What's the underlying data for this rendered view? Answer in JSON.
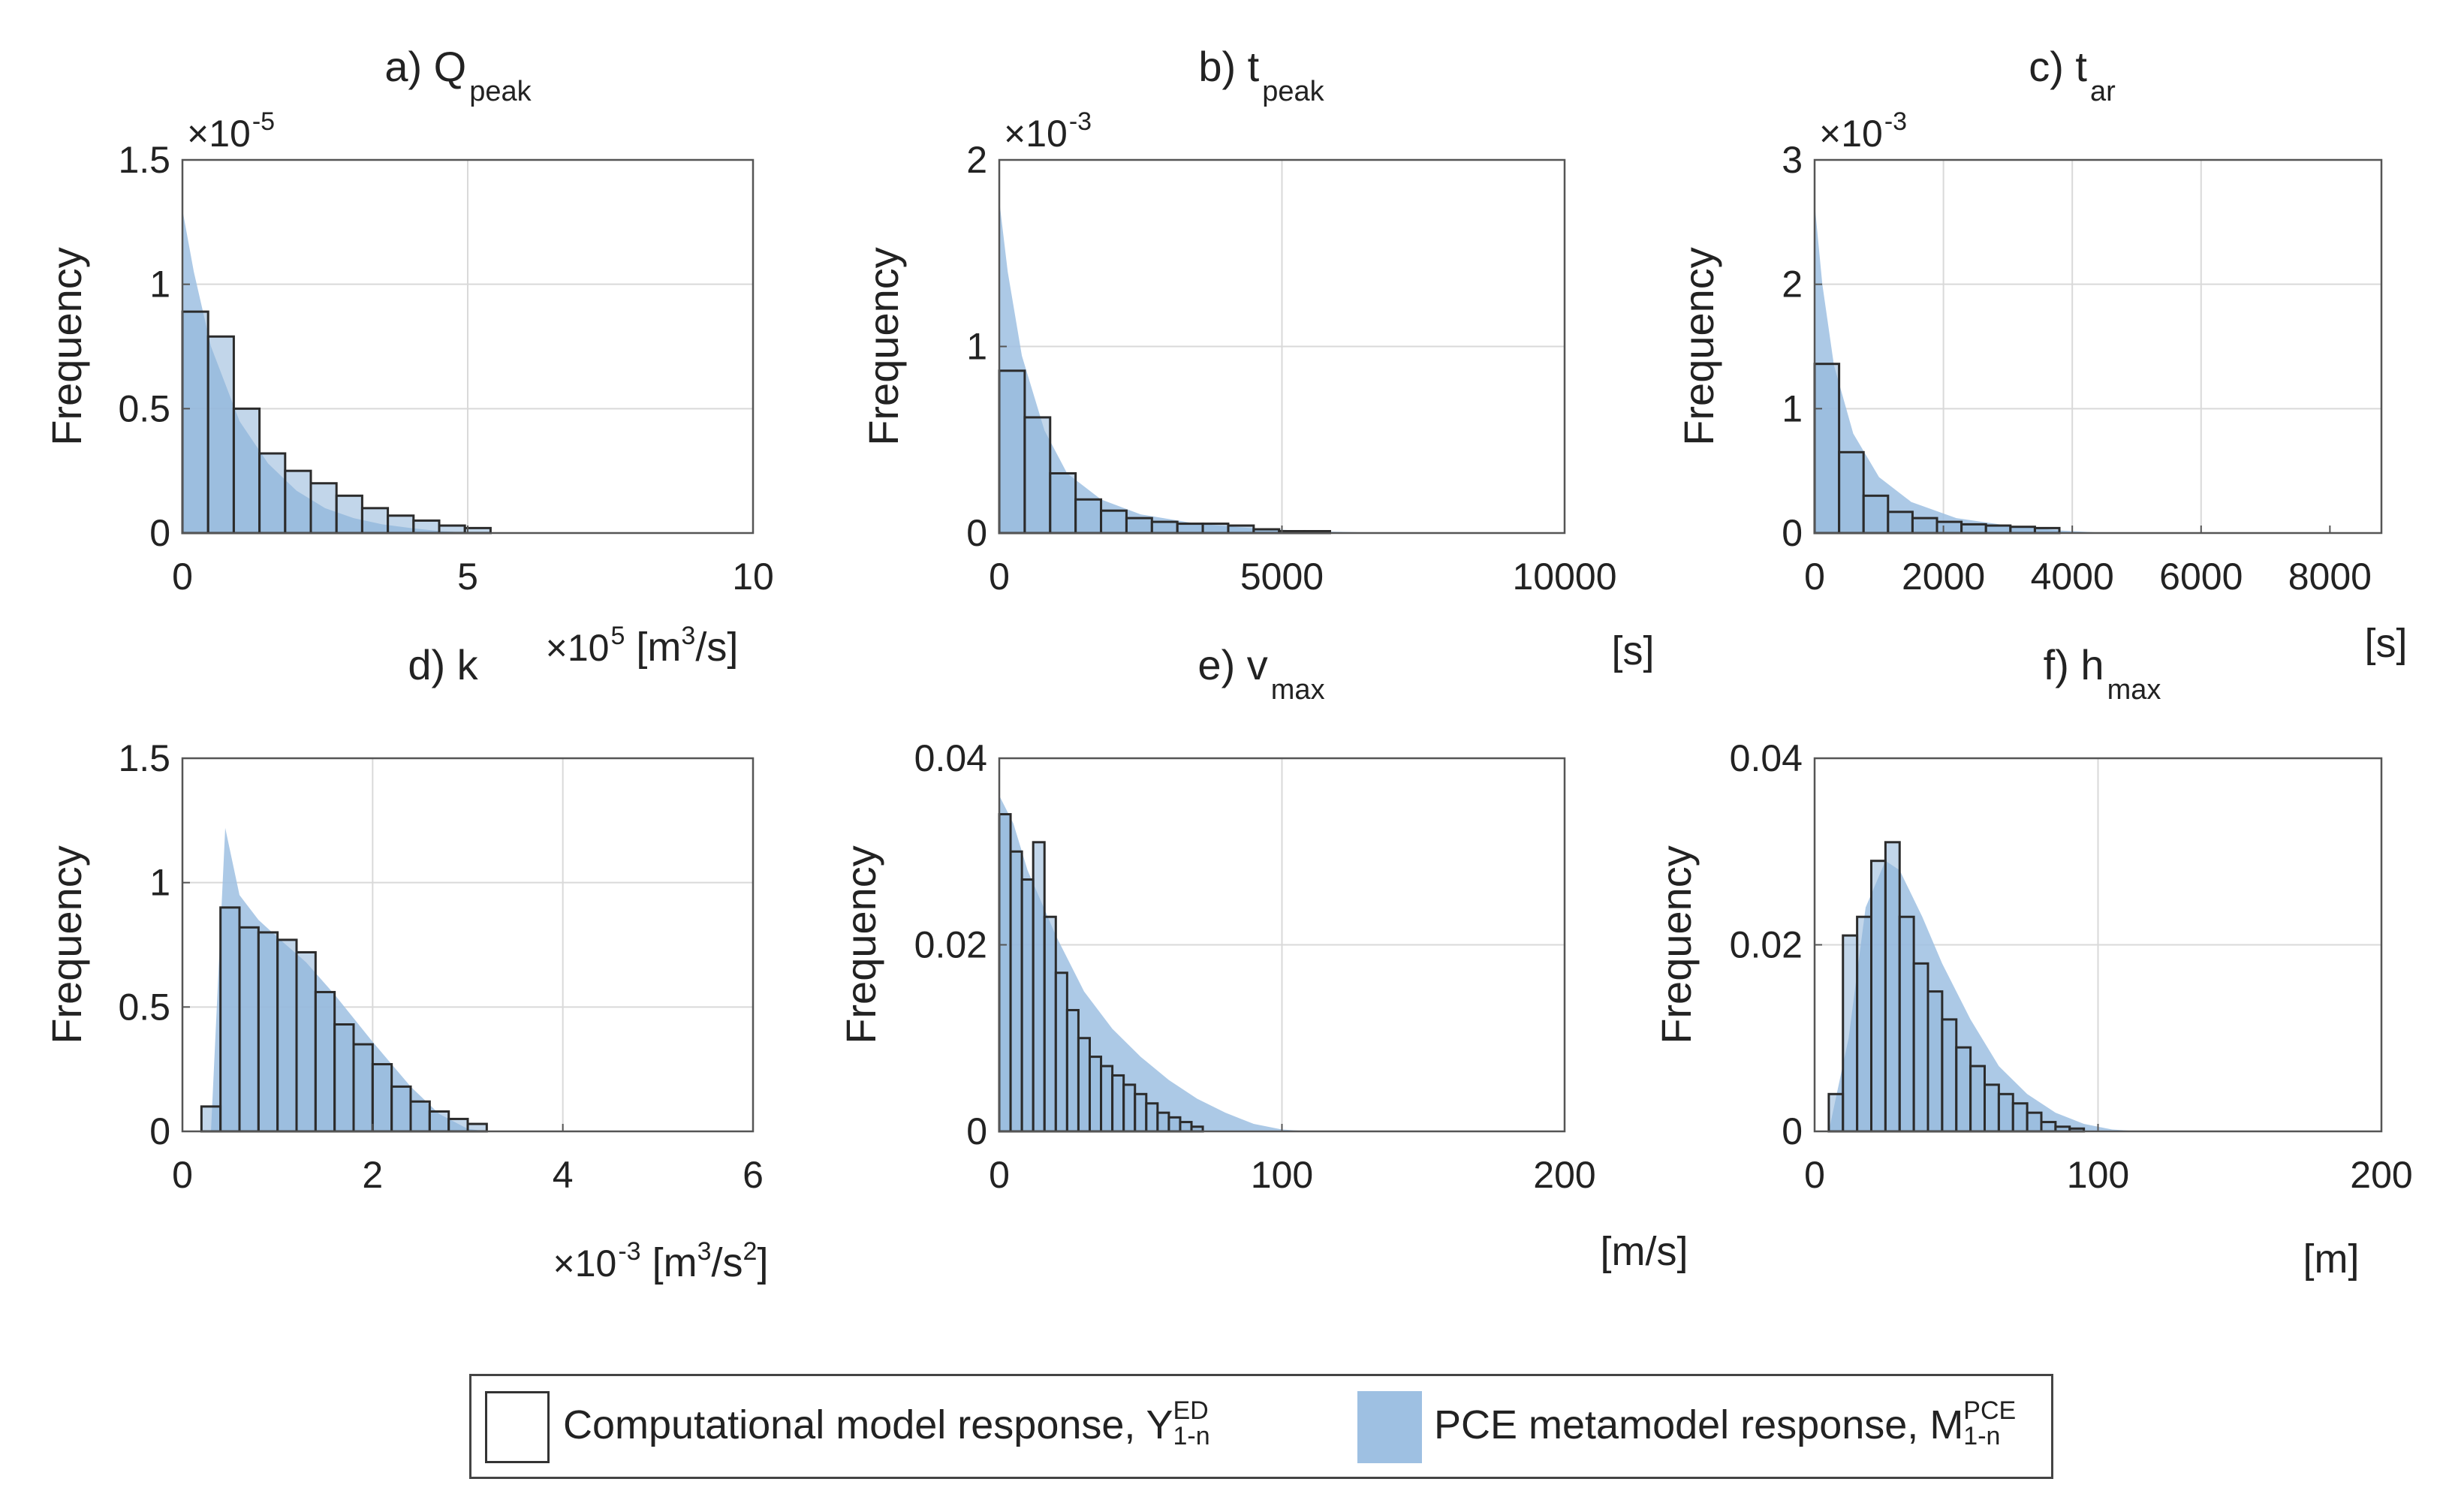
{
  "chart_data": [
    {
      "type": "bar",
      "title_prefix": "a) ",
      "title_main": "Q",
      "title_sub": "peak",
      "ylabel": "Frequency",
      "y_multiplier": "×10",
      "y_multiplier_exp": "-5",
      "x_multiplier": "×10",
      "x_multiplier_exp": "5",
      "unit_pre": "[m",
      "unit_exp": "3",
      "unit_post": "/s]",
      "xlim": [
        0,
        10
      ],
      "ylim": [
        0,
        1.5
      ],
      "xticks": [
        0,
        5,
        10
      ],
      "xtick_labels": [
        "0",
        "5",
        "10"
      ],
      "yticks": [
        0,
        0.5,
        1,
        1.5
      ],
      "ytick_labels": [
        "0",
        "0.5",
        "1",
        "1.5"
      ],
      "bin_width": 0.45,
      "computational_model": [
        0.89,
        0.79,
        0.5,
        0.32,
        0.25,
        0.2,
        0.15,
        0.1,
        0.07,
        0.05,
        0.03,
        0.02
      ],
      "pce_metamodel": [
        [
          0,
          1.3
        ],
        [
          0.2,
          1.05
        ],
        [
          0.5,
          0.75
        ],
        [
          1.0,
          0.45
        ],
        [
          1.5,
          0.28
        ],
        [
          2.0,
          0.17
        ],
        [
          2.5,
          0.1
        ],
        [
          3.0,
          0.06
        ],
        [
          3.5,
          0.035
        ],
        [
          4.0,
          0.02
        ],
        [
          4.5,
          0.008
        ],
        [
          5.0,
          0.002
        ],
        [
          6.0,
          0
        ]
      ]
    },
    {
      "type": "bar",
      "title_prefix": "b) ",
      "title_main": "t",
      "title_sub": "peak",
      "ylabel": "Frequency",
      "y_multiplier": "×10",
      "y_multiplier_exp": "-3",
      "unit_text": "[s]",
      "xlim": [
        0,
        10000
      ],
      "ylim": [
        0,
        2
      ],
      "xticks": [
        0,
        5000,
        10000
      ],
      "xtick_labels": [
        "0",
        "5000",
        "10000"
      ],
      "yticks": [
        0,
        1,
        2
      ],
      "ytick_labels": [
        "0",
        "1",
        "2"
      ],
      "bin_width": 450,
      "computational_model": [
        0.87,
        0.62,
        0.32,
        0.18,
        0.12,
        0.08,
        0.06,
        0.05,
        0.05,
        0.04,
        0.02,
        0.01,
        0.01
      ],
      "pce_metamodel": [
        [
          0,
          1.78
        ],
        [
          150,
          1.4
        ],
        [
          400,
          0.95
        ],
        [
          800,
          0.55
        ],
        [
          1200,
          0.32
        ],
        [
          1800,
          0.18
        ],
        [
          2500,
          0.1
        ],
        [
          3500,
          0.05
        ],
        [
          4500,
          0.025
        ],
        [
          5500,
          0.01
        ],
        [
          7000,
          0
        ]
      ]
    },
    {
      "type": "bar",
      "title_prefix": "c) ",
      "title_main": "t",
      "title_sub": "ar",
      "ylabel": "Frequency",
      "y_multiplier": "×10",
      "y_multiplier_exp": "-3",
      "unit_text": "[s]",
      "xlim": [
        0,
        8800
      ],
      "ylim": [
        0,
        3
      ],
      "xticks": [
        0,
        2000,
        4000,
        6000,
        8000
      ],
      "xtick_labels": [
        "0",
        "2000",
        "4000",
        "6000",
        "8000"
      ],
      "yticks": [
        0,
        1,
        2,
        3
      ],
      "ytick_labels": [
        "0",
        "1",
        "2",
        "3"
      ],
      "bin_width": 380,
      "computational_model": [
        1.36,
        0.65,
        0.3,
        0.17,
        0.12,
        0.09,
        0.07,
        0.06,
        0.05,
        0.04
      ],
      "pce_metamodel": [
        [
          0,
          2.65
        ],
        [
          120,
          2.0
        ],
        [
          300,
          1.35
        ],
        [
          600,
          0.8
        ],
        [
          1000,
          0.45
        ],
        [
          1500,
          0.25
        ],
        [
          2200,
          0.12
        ],
        [
          3000,
          0.06
        ],
        [
          3800,
          0.02
        ],
        [
          4600,
          0
        ]
      ]
    },
    {
      "type": "bar",
      "title_prefix": "d) ",
      "title_main": "k",
      "title_sub": "",
      "ylabel": "Frequency",
      "x_multiplier": "×10",
      "x_multiplier_exp": "-3",
      "unit_pre": "[m",
      "unit_exp": "3",
      "unit_mid": "/s",
      "unit_exp2": "2",
      "unit_post": "]",
      "xlim": [
        0,
        6
      ],
      "ylim": [
        0,
        1.5
      ],
      "xticks": [
        0,
        2,
        4,
        6
      ],
      "xtick_labels": [
        "0",
        "2",
        "4",
        "6"
      ],
      "yticks": [
        0,
        0.5,
        1,
        1.5
      ],
      "ytick_labels": [
        "0",
        "0.5",
        "1",
        "1.5"
      ],
      "bin_start": 0.2,
      "bin_width": 0.2,
      "computational_model": [
        0.1,
        0.9,
        0.82,
        0.8,
        0.77,
        0.72,
        0.56,
        0.43,
        0.35,
        0.27,
        0.18,
        0.12,
        0.08,
        0.05,
        0.03
      ],
      "pce_metamodel": [
        [
          0.3,
          0
        ],
        [
          0.45,
          1.22
        ],
        [
          0.6,
          0.95
        ],
        [
          0.8,
          0.85
        ],
        [
          1.0,
          0.78
        ],
        [
          1.3,
          0.68
        ],
        [
          1.6,
          0.55
        ],
        [
          2.0,
          0.36
        ],
        [
          2.4,
          0.18
        ],
        [
          2.7,
          0.07
        ],
        [
          3.0,
          0.01
        ],
        [
          3.2,
          0
        ]
      ]
    },
    {
      "type": "bar",
      "title_prefix": "e) ",
      "title_main": "v",
      "title_sub": "max",
      "ylabel": "Frequency",
      "unit_text": "[m/s]",
      "xlim": [
        0,
        200
      ],
      "ylim": [
        0,
        0.04
      ],
      "xticks": [
        0,
        100,
        200
      ],
      "xtick_labels": [
        "0",
        "100",
        "200"
      ],
      "yticks": [
        0,
        0.02,
        0.04
      ],
      "ytick_labels": [
        "0",
        "0.02",
        "0.04"
      ],
      "bin_width": 4,
      "computational_model": [
        0.034,
        0.03,
        0.027,
        0.031,
        0.023,
        0.017,
        0.013,
        0.01,
        0.008,
        0.007,
        0.006,
        0.005,
        0.004,
        0.003,
        0.002,
        0.0015,
        0.001,
        0.0005
      ],
      "pce_metamodel": [
        [
          0,
          0.036
        ],
        [
          5,
          0.033
        ],
        [
          10,
          0.028
        ],
        [
          20,
          0.021
        ],
        [
          30,
          0.015
        ],
        [
          40,
          0.011
        ],
        [
          50,
          0.008
        ],
        [
          60,
          0.0055
        ],
        [
          70,
          0.0035
        ],
        [
          80,
          0.002
        ],
        [
          90,
          0.0008
        ],
        [
          100,
          0.0002
        ],
        [
          110,
          0
        ]
      ]
    },
    {
      "type": "bar",
      "title_prefix": "f) ",
      "title_main": "h",
      "title_sub": "max",
      "ylabel": "Frequency",
      "unit_text": "[m]",
      "xlim": [
        0,
        200
      ],
      "ylim": [
        0,
        0.04
      ],
      "xticks": [
        0,
        100,
        200
      ],
      "xtick_labels": [
        "0",
        "100",
        "200"
      ],
      "yticks": [
        0,
        0.02,
        0.04
      ],
      "ytick_labels": [
        "0",
        "0.02",
        "0.04"
      ],
      "bin_start": 5,
      "bin_width": 5,
      "computational_model": [
        0.004,
        0.021,
        0.023,
        0.029,
        0.031,
        0.023,
        0.018,
        0.015,
        0.012,
        0.009,
        0.007,
        0.005,
        0.004,
        0.003,
        0.002,
        0.001,
        0.0005,
        0.0003
      ],
      "pce_metamodel": [
        [
          5,
          0
        ],
        [
          12,
          0.01
        ],
        [
          18,
          0.024
        ],
        [
          25,
          0.029
        ],
        [
          30,
          0.028
        ],
        [
          38,
          0.023
        ],
        [
          45,
          0.018
        ],
        [
          55,
          0.012
        ],
        [
          65,
          0.007
        ],
        [
          75,
          0.004
        ],
        [
          85,
          0.002
        ],
        [
          95,
          0.0008
        ],
        [
          105,
          0.0002
        ],
        [
          115,
          0
        ]
      ]
    }
  ],
  "legend": {
    "computational_label": "Computational model response, Y",
    "computational_sup": "ED",
    "computational_sub": "1-n",
    "pce_label": "PCE metamodel response, M",
    "pce_sup": "PCE",
    "pce_sub": "1-n"
  },
  "colors": {
    "pce_fill": "#9ec0e2",
    "pce_hist_fill": "#8fb4d8",
    "bar_edge": "#2b2b2b",
    "grid": "#d9d9d9",
    "axis": "#555555"
  }
}
